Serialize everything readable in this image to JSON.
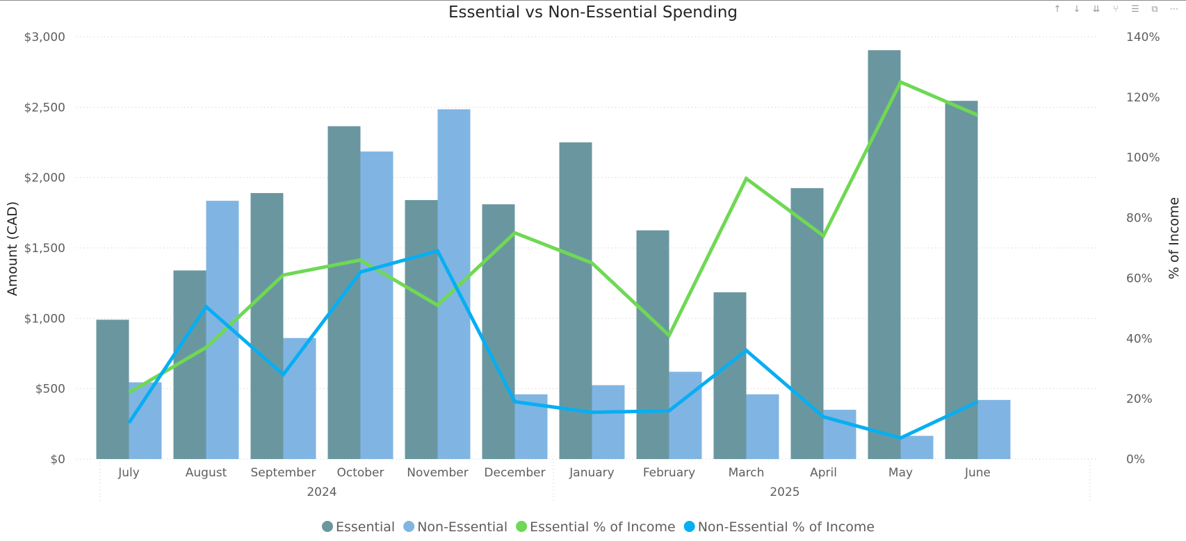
{
  "toolbar": {
    "icons": [
      "arrow-up-icon",
      "arrow-down-icon",
      "double-arrow-down-icon",
      "drill-icon",
      "filter-icon",
      "focus-mode-icon",
      "more-options-icon"
    ]
  },
  "chart_data": {
    "type": "bar",
    "title": "Essential vs Non-Essential Spending",
    "ylabel": "Amount (CAD)",
    "y2label": "% of Income",
    "ylim": [
      0,
      3000
    ],
    "y2lim": [
      0,
      1.4
    ],
    "y_ticks": [
      "$0",
      "$500",
      "$1,000",
      "$1,500",
      "$2,000",
      "$2,500",
      "$3,000"
    ],
    "y2_ticks": [
      "0%",
      "20%",
      "40%",
      "60%",
      "80%",
      "100%",
      "120%",
      "140%"
    ],
    "categories": [
      "July",
      "August",
      "September",
      "October",
      "November",
      "December",
      "January",
      "February",
      "March",
      "April",
      "May",
      "June"
    ],
    "year_groups": [
      {
        "label": "2024",
        "count": 6
      },
      {
        "label": "2025",
        "count": 6
      }
    ],
    "grid": true,
    "legend_position": "bottom",
    "series": [
      {
        "name": "Essential",
        "kind": "bar",
        "color": "#6a979f",
        "values": [
          990,
          1340,
          1890,
          2365,
          1840,
          1810,
          2250,
          1625,
          1185,
          1925,
          2905,
          2545
        ]
      },
      {
        "name": "Non-Essential",
        "kind": "bar",
        "color": "#80b5e3",
        "values": [
          545,
          1835,
          860,
          2185,
          2485,
          460,
          525,
          620,
          460,
          350,
          165,
          420
        ]
      },
      {
        "name": "Essential % of Income",
        "kind": "line",
        "axis": "right",
        "color": "#6fd854",
        "values": [
          0.22,
          0.37,
          0.61,
          0.66,
          0.51,
          0.75,
          0.65,
          0.41,
          0.93,
          0.74,
          1.25,
          1.14
        ]
      },
      {
        "name": "Non-Essential % of Income",
        "kind": "line",
        "axis": "right",
        "color": "#08aef2",
        "values": [
          0.12,
          0.505,
          0.28,
          0.62,
          0.69,
          0.19,
          0.155,
          0.16,
          0.36,
          0.14,
          0.07,
          0.19
        ]
      }
    ]
  }
}
